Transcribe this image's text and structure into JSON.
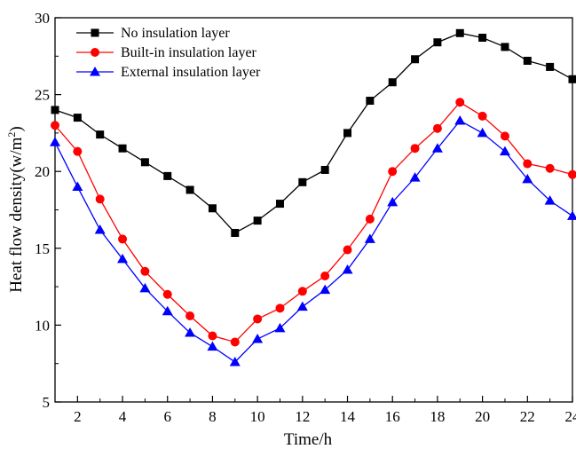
{
  "chart_data": {
    "type": "line",
    "title": "",
    "xlabel": "Time/h",
    "ylabel_main": "Heat flow density(w/m",
    "ylabel_sup": "2",
    "ylabel_close": ")",
    "xlim": [
      1,
      24
    ],
    "ylim": [
      5,
      30
    ],
    "x_ticks": [
      2,
      4,
      6,
      8,
      10,
      12,
      14,
      16,
      18,
      20,
      22,
      24
    ],
    "y_ticks": [
      5,
      10,
      15,
      20,
      25,
      30
    ],
    "grid": false,
    "legend_position": "top-left",
    "x": [
      1,
      2,
      3,
      4,
      5,
      6,
      7,
      8,
      9,
      10,
      11,
      12,
      13,
      14,
      15,
      16,
      17,
      18,
      19,
      20,
      21,
      22,
      23,
      24
    ],
    "series": [
      {
        "name": "No insulation layer",
        "color": "#000000",
        "marker": "square",
        "values": [
          24.0,
          23.5,
          22.4,
          21.5,
          20.6,
          19.7,
          18.8,
          17.6,
          16.0,
          16.8,
          17.9,
          19.3,
          20.1,
          22.5,
          24.6,
          25.8,
          27.3,
          28.4,
          29.0,
          28.7,
          28.1,
          27.2,
          26.8,
          26.0
        ]
      },
      {
        "name": "Built-in insulation layer",
        "color": "#ff0000",
        "marker": "circle",
        "values": [
          23.0,
          21.3,
          18.2,
          15.6,
          13.5,
          12.0,
          10.6,
          9.3,
          8.9,
          10.4,
          11.1,
          12.2,
          13.2,
          14.9,
          16.9,
          20.0,
          21.5,
          22.8,
          24.5,
          23.6,
          22.3,
          20.5,
          20.2,
          19.8
        ]
      },
      {
        "name": "External insulation layer",
        "color": "#0000ff",
        "marker": "triangle",
        "values": [
          21.9,
          19.0,
          16.2,
          14.3,
          12.4,
          10.9,
          9.5,
          8.6,
          7.6,
          9.1,
          9.8,
          11.2,
          12.3,
          13.6,
          15.6,
          18.0,
          19.6,
          21.5,
          23.3,
          22.5,
          21.3,
          19.5,
          18.1,
          17.1
        ]
      }
    ]
  }
}
